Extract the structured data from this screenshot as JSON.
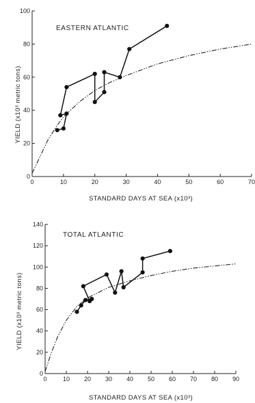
{
  "chart_data": [
    {
      "type": "line",
      "title": "EASTERN ATLANTIC",
      "xlabel": "STANDARD DAYS AT SEA (x10³)",
      "ylabel": "YIELD (x10³ metric tons)",
      "xlim": [
        0,
        70
      ],
      "ylim": [
        0,
        100
      ],
      "xticks": [
        0,
        10,
        20,
        30,
        40,
        50,
        60,
        70
      ],
      "yticks": [
        0,
        20,
        40,
        60,
        80,
        100
      ],
      "series": [
        {
          "values": [
            [
              8,
              28
            ],
            [
              10,
              29
            ],
            [
              11,
              38
            ],
            [
              9,
              37
            ],
            [
              11,
              54
            ],
            [
              20,
              62
            ],
            [
              20,
              45
            ],
            [
              23,
              51
            ],
            [
              23,
              63
            ],
            [
              28,
              60
            ],
            [
              31,
              77
            ],
            [
              43,
              91
            ]
          ]
        }
      ],
      "curve": [
        [
          0,
          2
        ],
        [
          2,
          10
        ],
        [
          5,
          22
        ],
        [
          8,
          31
        ],
        [
          10,
          36
        ],
        [
          15,
          45
        ],
        [
          20,
          52
        ],
        [
          25,
          57
        ],
        [
          30,
          61
        ],
        [
          40,
          68
        ],
        [
          50,
          73
        ],
        [
          60,
          77
        ],
        [
          70,
          80
        ]
      ]
    },
    {
      "type": "line",
      "title": "TOTAL ATLANTIC",
      "xlabel": "STANDARD DAYS AT SEA (x10³)",
      "ylabel": "YIELD (x10³ metric tons)",
      "xlim": [
        0,
        90
      ],
      "ylim": [
        0,
        140
      ],
      "xticks": [
        0,
        10,
        20,
        30,
        40,
        50,
        60,
        70,
        80,
        90
      ],
      "yticks": [
        0,
        20,
        40,
        60,
        80,
        100,
        120,
        140
      ],
      "series": [
        {
          "values": [
            [
              15,
              58
            ],
            [
              17,
              64
            ],
            [
              19,
              69
            ],
            [
              22,
              70
            ],
            [
              21,
              68
            ],
            [
              18,
              82
            ],
            [
              29,
              93
            ],
            [
              33,
              76
            ],
            [
              36,
              96
            ],
            [
              37,
              81
            ],
            [
              46,
              95
            ],
            [
              46,
              108
            ],
            [
              59,
              115
            ]
          ]
        }
      ],
      "curve": [
        [
          0,
          2
        ],
        [
          3,
          20
        ],
        [
          6,
          35
        ],
        [
          10,
          50
        ],
        [
          15,
          63
        ],
        [
          20,
          71
        ],
        [
          30,
          81
        ],
        [
          40,
          87
        ],
        [
          50,
          92
        ],
        [
          60,
          96
        ],
        [
          70,
          99
        ],
        [
          80,
          101
        ],
        [
          90,
          103
        ]
      ]
    }
  ]
}
